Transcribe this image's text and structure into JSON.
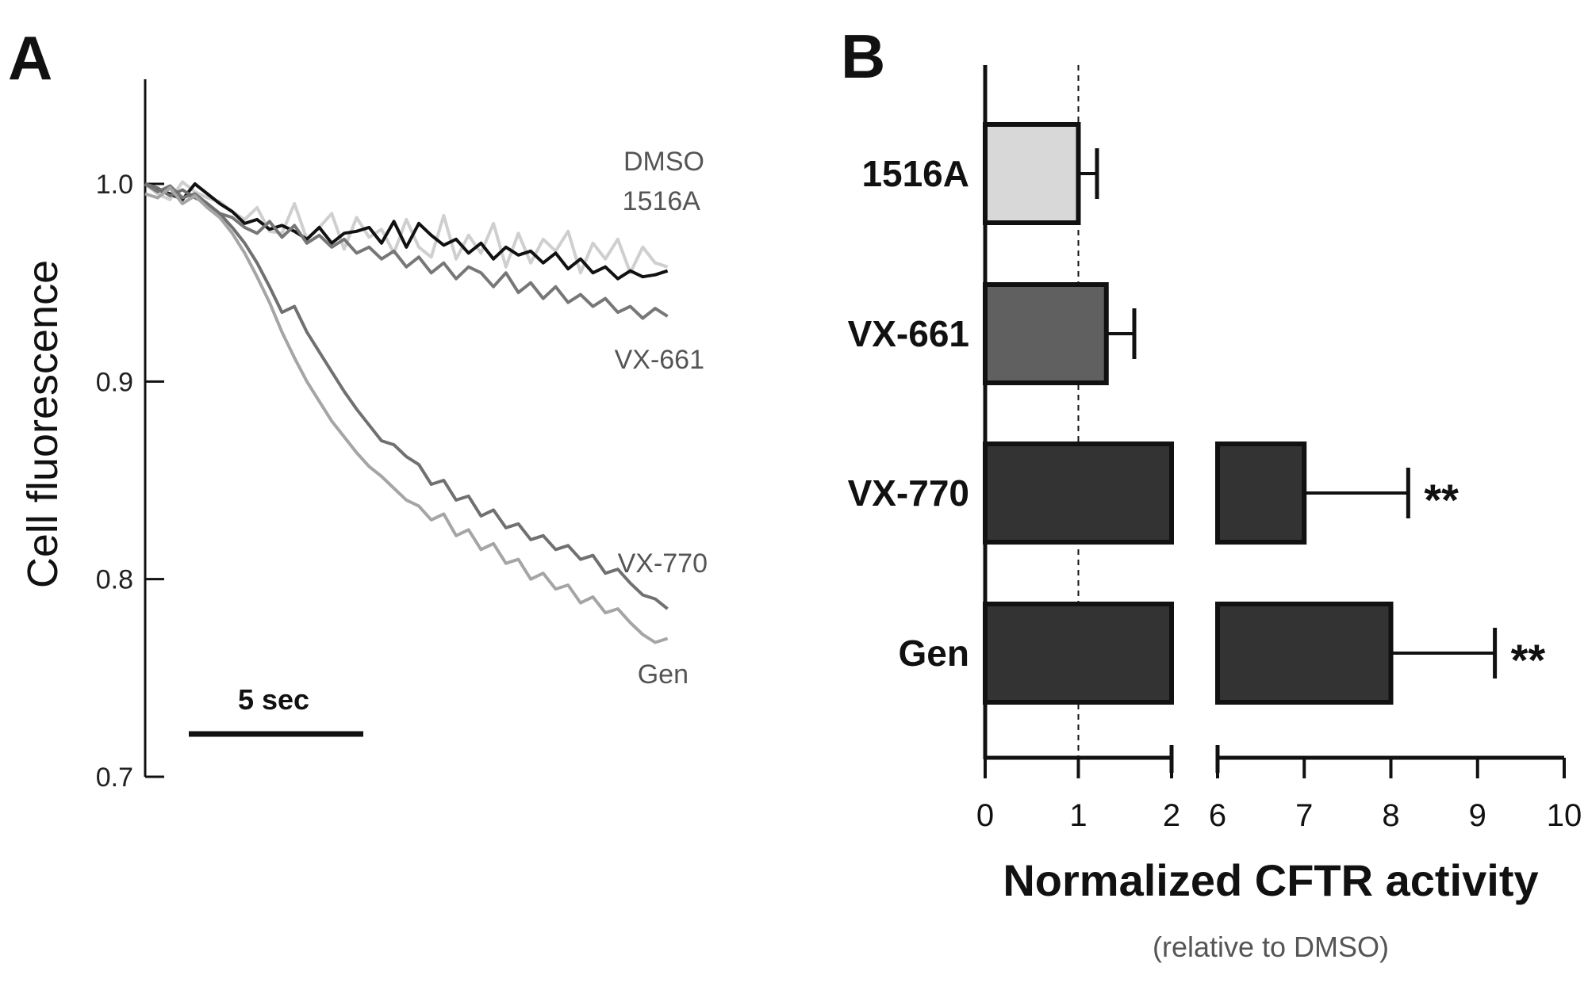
{
  "chart_data": [
    {
      "panel": "A",
      "type": "line",
      "title": "",
      "ylabel": "Cell fluorescence",
      "xlabel": "",
      "ylim": [
        0.7,
        1.05
      ],
      "yticks": [
        0.7,
        0.8,
        0.9,
        1.0
      ],
      "ytick_labels": [
        "0.7",
        "0.8",
        "0.9",
        "1.0"
      ],
      "xlim": [
        0,
        22
      ],
      "scale_bar": {
        "label": "5 sec",
        "seconds": 5
      },
      "series": [
        {
          "name": "DMSO",
          "color": "#cfcfcf",
          "x": [
            0,
            0.5,
            1,
            1.5,
            2,
            2.5,
            3,
            3.5,
            4,
            4.5,
            5,
            5.5,
            6,
            6.5,
            7,
            7.5,
            8,
            8.5,
            9,
            9.5,
            10,
            10.5,
            11,
            11.5,
            12,
            12.5,
            13,
            13.5,
            14,
            14.5,
            15,
            15.5,
            16,
            16.5,
            17,
            17.5,
            18,
            18.5,
            19,
            19.5,
            20,
            20.5,
            21
          ],
          "values": [
            1.0,
            0.995,
            0.992,
            1.001,
            0.996,
            0.993,
            0.991,
            0.986,
            0.982,
            0.988,
            0.976,
            0.975,
            0.99,
            0.972,
            0.978,
            0.985,
            0.967,
            0.983,
            0.973,
            0.977,
            0.965,
            0.982,
            0.968,
            0.963,
            0.984,
            0.962,
            0.974,
            0.965,
            0.98,
            0.958,
            0.975,
            0.96,
            0.972,
            0.966,
            0.976,
            0.955,
            0.97,
            0.962,
            0.972,
            0.955,
            0.968,
            0.96,
            0.958
          ]
        },
        {
          "name": "1516A",
          "color": "#111111",
          "x": [
            0,
            0.5,
            1,
            1.5,
            2,
            2.5,
            3,
            3.5,
            4,
            4.5,
            5,
            5.5,
            6,
            6.5,
            7,
            7.5,
            8,
            8.5,
            9,
            9.5,
            10,
            10.5,
            11,
            11.5,
            12,
            12.5,
            13,
            13.5,
            14,
            14.5,
            15,
            15.5,
            16,
            16.5,
            17,
            17.5,
            18,
            18.5,
            19,
            19.5,
            20,
            20.5,
            21
          ],
          "values": [
            1.0,
            0.997,
            0.995,
            0.992,
            1.0,
            0.995,
            0.99,
            0.986,
            0.98,
            0.982,
            0.977,
            0.979,
            0.976,
            0.972,
            0.978,
            0.97,
            0.975,
            0.976,
            0.978,
            0.97,
            0.981,
            0.968,
            0.98,
            0.974,
            0.969,
            0.972,
            0.965,
            0.97,
            0.962,
            0.968,
            0.964,
            0.966,
            0.96,
            0.965,
            0.957,
            0.962,
            0.955,
            0.958,
            0.952,
            0.956,
            0.953,
            0.954,
            0.956
          ]
        },
        {
          "name": "VX-661",
          "color": "#777777",
          "x": [
            0,
            0.5,
            1,
            1.5,
            2,
            2.5,
            3,
            3.5,
            4,
            4.5,
            5,
            5.5,
            6,
            6.5,
            7,
            7.5,
            8,
            8.5,
            9,
            9.5,
            10,
            10.5,
            11,
            11.5,
            12,
            12.5,
            13,
            13.5,
            14,
            14.5,
            15,
            15.5,
            16,
            16.5,
            17,
            17.5,
            18,
            18.5,
            19,
            19.5,
            20,
            20.5,
            21
          ],
          "values": [
            1.0,
            0.996,
            0.999,
            0.993,
            0.995,
            0.99,
            0.985,
            0.983,
            0.978,
            0.975,
            0.981,
            0.973,
            0.979,
            0.97,
            0.974,
            0.968,
            0.972,
            0.965,
            0.968,
            0.962,
            0.966,
            0.958,
            0.963,
            0.955,
            0.96,
            0.952,
            0.958,
            0.955,
            0.948,
            0.955,
            0.945,
            0.95,
            0.942,
            0.948,
            0.94,
            0.944,
            0.938,
            0.942,
            0.935,
            0.938,
            0.932,
            0.937,
            0.933
          ]
        },
        {
          "name": "VX-770",
          "color": "#707070",
          "x": [
            0,
            0.5,
            1,
            1.5,
            2,
            2.5,
            3,
            3.5,
            4,
            4.5,
            5,
            5.5,
            6,
            6.5,
            7,
            7.5,
            8,
            8.5,
            9,
            9.5,
            10,
            10.5,
            11,
            11.5,
            12,
            12.5,
            13,
            13.5,
            14,
            14.5,
            15,
            15.5,
            16,
            16.5,
            17,
            17.5,
            18,
            18.5,
            19,
            19.5,
            20,
            20.5,
            21
          ],
          "values": [
            1.0,
            0.998,
            0.994,
            0.997,
            0.993,
            0.99,
            0.985,
            0.978,
            0.97,
            0.96,
            0.948,
            0.935,
            0.938,
            0.925,
            0.915,
            0.905,
            0.895,
            0.886,
            0.878,
            0.87,
            0.868,
            0.862,
            0.858,
            0.848,
            0.85,
            0.84,
            0.842,
            0.832,
            0.835,
            0.826,
            0.828,
            0.82,
            0.822,
            0.815,
            0.817,
            0.81,
            0.812,
            0.803,
            0.805,
            0.798,
            0.792,
            0.79,
            0.785
          ]
        },
        {
          "name": "Gen",
          "color": "#a5a5a5",
          "x": [
            0,
            0.5,
            1,
            1.5,
            2,
            2.5,
            3,
            3.5,
            4,
            4.5,
            5,
            5.5,
            6,
            6.5,
            7,
            7.5,
            8,
            8.5,
            9,
            9.5,
            10,
            10.5,
            11,
            11.5,
            12,
            12.5,
            13,
            13.5,
            14,
            14.5,
            15,
            15.5,
            16,
            16.5,
            17,
            17.5,
            18,
            18.5,
            19,
            19.5,
            20,
            20.5,
            21
          ],
          "values": [
            0.995,
            0.993,
            0.998,
            0.99,
            0.994,
            0.988,
            0.983,
            0.975,
            0.965,
            0.953,
            0.94,
            0.925,
            0.912,
            0.9,
            0.89,
            0.88,
            0.872,
            0.864,
            0.857,
            0.852,
            0.846,
            0.84,
            0.837,
            0.83,
            0.833,
            0.822,
            0.825,
            0.815,
            0.818,
            0.808,
            0.81,
            0.8,
            0.803,
            0.795,
            0.797,
            0.788,
            0.791,
            0.783,
            0.785,
            0.778,
            0.772,
            0.768,
            0.77
          ]
        }
      ]
    },
    {
      "panel": "B",
      "type": "bar",
      "orientation": "horizontal",
      "title": "",
      "xlabel": "Normalized CFTR activity",
      "xlabel_sub": "(relative to DMSO)",
      "axis_break": [
        2,
        6
      ],
      "xlim": [
        0,
        10
      ],
      "xticks": [
        0,
        1,
        2,
        6,
        7,
        8,
        9,
        10
      ],
      "xtick_labels": [
        "0",
        "1",
        "2",
        "6",
        "7",
        "8",
        "9",
        "10"
      ],
      "reference_line": 1,
      "categories": [
        "1516A",
        "VX-661",
        "VX-770",
        "Gen"
      ],
      "values": [
        1.0,
        1.3,
        7.0,
        8.0
      ],
      "error": [
        0.2,
        0.3,
        1.2,
        1.2
      ],
      "significance": [
        "",
        "",
        "**",
        "**"
      ],
      "bar_colors": [
        "#d8d8d8",
        "#606060",
        "#333333",
        "#333333"
      ]
    }
  ]
}
